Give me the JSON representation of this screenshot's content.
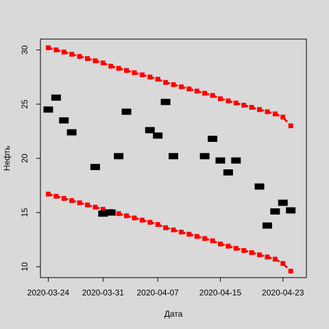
{
  "chart_data": {
    "type": "scatter",
    "title": "",
    "xlabel": "Дата",
    "ylabel": "Нефть",
    "xlim": [
      "2020-03-23",
      "2020-04-26"
    ],
    "ylim": [
      9,
      31
    ],
    "x_ticks": [
      "2020-03-24",
      "2020-03-31",
      "2020-04-07",
      "2020-04-15",
      "2020-04-23"
    ],
    "y_ticks": [
      10,
      15,
      20,
      25,
      30
    ],
    "grid": false,
    "background": "#d9d9d9",
    "series": [
      {
        "role": "observed",
        "color": "#000000",
        "marker": "square",
        "points": [
          {
            "x": "2020-03-24",
            "y": 24.5
          },
          {
            "x": "2020-03-25",
            "y": 25.6
          },
          {
            "x": "2020-03-26",
            "y": 23.5
          },
          {
            "x": "2020-03-27",
            "y": 22.4
          },
          {
            "x": "2020-03-30",
            "y": 19.2
          },
          {
            "x": "2020-03-31",
            "y": 14.9
          },
          {
            "x": "2020-04-01",
            "y": 15.0
          },
          {
            "x": "2020-04-02",
            "y": 20.2
          },
          {
            "x": "2020-04-03",
            "y": 24.3
          },
          {
            "x": "2020-04-06",
            "y": 22.6
          },
          {
            "x": "2020-04-07",
            "y": 22.1
          },
          {
            "x": "2020-04-08",
            "y": 25.2
          },
          {
            "x": "2020-04-09",
            "y": 20.2
          },
          {
            "x": "2020-04-13",
            "y": 20.2
          },
          {
            "x": "2020-04-14",
            "y": 21.8
          },
          {
            "x": "2020-04-15",
            "y": 19.8
          },
          {
            "x": "2020-04-16",
            "y": 18.7
          },
          {
            "x": "2020-04-17",
            "y": 19.8
          },
          {
            "x": "2020-04-20",
            "y": 17.4
          },
          {
            "x": "2020-04-21",
            "y": 13.8
          },
          {
            "x": "2020-04-22",
            "y": 15.1
          },
          {
            "x": "2020-04-23",
            "y": 15.9
          },
          {
            "x": "2020-04-24",
            "y": 15.2
          }
        ]
      },
      {
        "role": "upper",
        "color": "#ff0000",
        "marker": "square",
        "x": [
          "2020-03-24",
          "2020-03-25",
          "2020-03-26",
          "2020-03-27",
          "2020-03-28",
          "2020-03-29",
          "2020-03-30",
          "2020-03-31",
          "2020-04-01",
          "2020-04-02",
          "2020-04-03",
          "2020-04-04",
          "2020-04-05",
          "2020-04-06",
          "2020-04-07",
          "2020-04-08",
          "2020-04-09",
          "2020-04-10",
          "2020-04-11",
          "2020-04-12",
          "2020-04-13",
          "2020-04-14",
          "2020-04-15",
          "2020-04-16",
          "2020-04-17",
          "2020-04-18",
          "2020-04-19",
          "2020-04-20",
          "2020-04-21",
          "2020-04-22",
          "2020-04-23",
          "2020-04-24"
        ],
        "y": [
          30.2,
          30.0,
          29.8,
          29.6,
          29.4,
          29.2,
          29.0,
          28.8,
          28.5,
          28.3,
          28.1,
          27.9,
          27.7,
          27.5,
          27.3,
          27.0,
          26.8,
          26.6,
          26.4,
          26.2,
          26.0,
          25.8,
          25.5,
          25.3,
          25.1,
          24.9,
          24.7,
          24.5,
          24.3,
          24.1,
          23.8,
          23.0
        ]
      },
      {
        "role": "lower",
        "color": "#ff0000",
        "marker": "square",
        "x": [
          "2020-03-24",
          "2020-03-25",
          "2020-03-26",
          "2020-03-27",
          "2020-03-28",
          "2020-03-29",
          "2020-03-30",
          "2020-03-31",
          "2020-04-01",
          "2020-04-02",
          "2020-04-03",
          "2020-04-04",
          "2020-04-05",
          "2020-04-06",
          "2020-04-07",
          "2020-04-08",
          "2020-04-09",
          "2020-04-10",
          "2020-04-11",
          "2020-04-12",
          "2020-04-13",
          "2020-04-14",
          "2020-04-15",
          "2020-04-16",
          "2020-04-17",
          "2020-04-18",
          "2020-04-19",
          "2020-04-20",
          "2020-04-21",
          "2020-04-22",
          "2020-04-23",
          "2020-04-24"
        ],
        "y": [
          16.7,
          16.5,
          16.3,
          16.1,
          15.9,
          15.7,
          15.5,
          15.3,
          15.1,
          14.9,
          14.7,
          14.5,
          14.3,
          14.1,
          13.9,
          13.6,
          13.4,
          13.2,
          13.0,
          12.8,
          12.6,
          12.4,
          12.1,
          11.9,
          11.7,
          11.5,
          11.3,
          11.1,
          10.9,
          10.7,
          10.3,
          9.6
        ]
      }
    ]
  }
}
